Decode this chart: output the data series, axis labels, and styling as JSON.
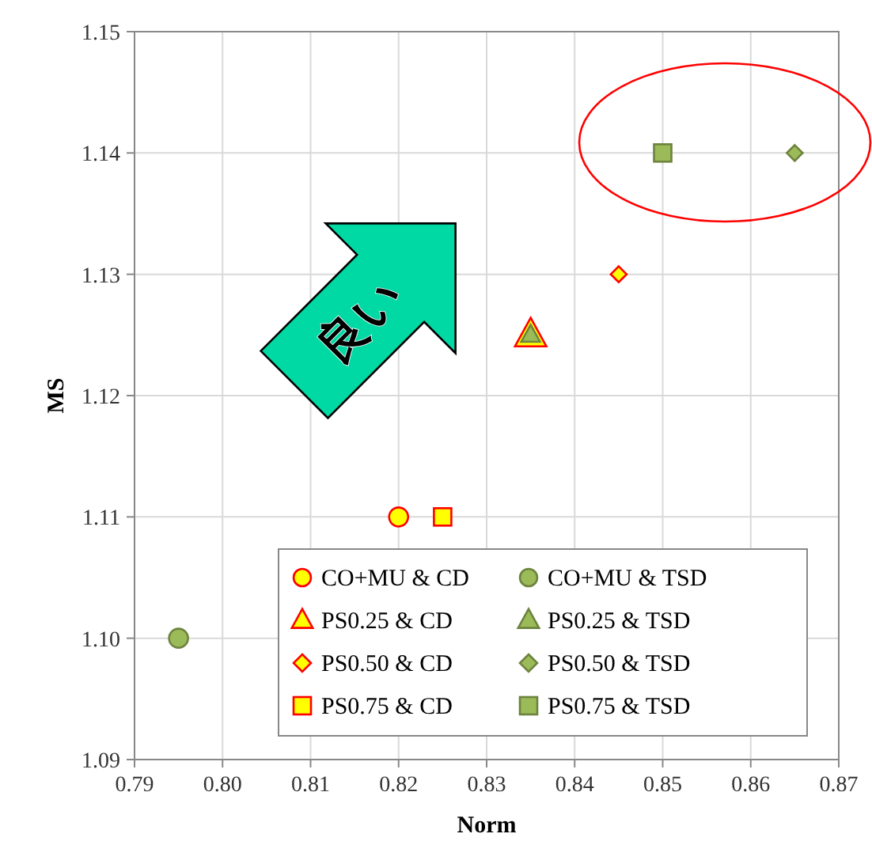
{
  "chart_data": {
    "type": "scatter",
    "xlabel": "Norm",
    "ylabel": "MS",
    "xlim": [
      0.79,
      0.87
    ],
    "xticks": [
      0.79,
      {
        "value": 0.8,
        "label": "0.80"
      },
      0.81,
      0.82,
      0.83,
      0.84,
      0.85,
      0.86,
      0.87
    ],
    "ylim": [
      1.09,
      1.15
    ],
    "yticks": [
      1.09,
      {
        "value": 1.1,
        "label": "1.10"
      },
      1.11,
      1.12,
      1.13,
      1.14,
      1.15
    ],
    "grid": true,
    "legend": "bottom right",
    "annotations": [
      "良い"
    ],
    "series": [
      {
        "name": "CO+MU & CD",
        "color": "#ffff00",
        "marker": "circle",
        "x": [
          0.82
        ],
        "values": [
          1.11
        ]
      },
      {
        "name": "CO+MU & TSD",
        "color": "#9bbb59",
        "marker": "circle",
        "x": [
          0.795
        ],
        "values": [
          1.1
        ]
      },
      {
        "name": "PS0.25 & CD",
        "color": "#ffff00",
        "marker": "triangle",
        "x": [
          0.835
        ],
        "values": [
          1.125
        ]
      },
      {
        "name": "PS0.25 & TSD",
        "color": "#9bbb59",
        "marker": "triangle",
        "x": [
          0.835
        ],
        "values": [
          1.125
        ]
      },
      {
        "name": "PS0.50 & CD",
        "color": "#ffff00",
        "marker": "diamond",
        "x": [
          0.845
        ],
        "values": [
          1.13
        ]
      },
      {
        "name": "PS0.50 & TSD",
        "color": "#9bbb59",
        "marker": "diamond",
        "x": [
          0.865
        ],
        "values": [
          1.14
        ]
      },
      {
        "name": "PS0.75 & CD",
        "color": "#ffff00",
        "marker": "square",
        "x": [
          0.825
        ],
        "values": [
          1.11
        ]
      },
      {
        "name": "PS0.75 & TSD",
        "color": "#9bbb59",
        "marker": "square",
        "x": [
          0.85
        ],
        "values": [
          1.14
        ]
      }
    ]
  }
}
